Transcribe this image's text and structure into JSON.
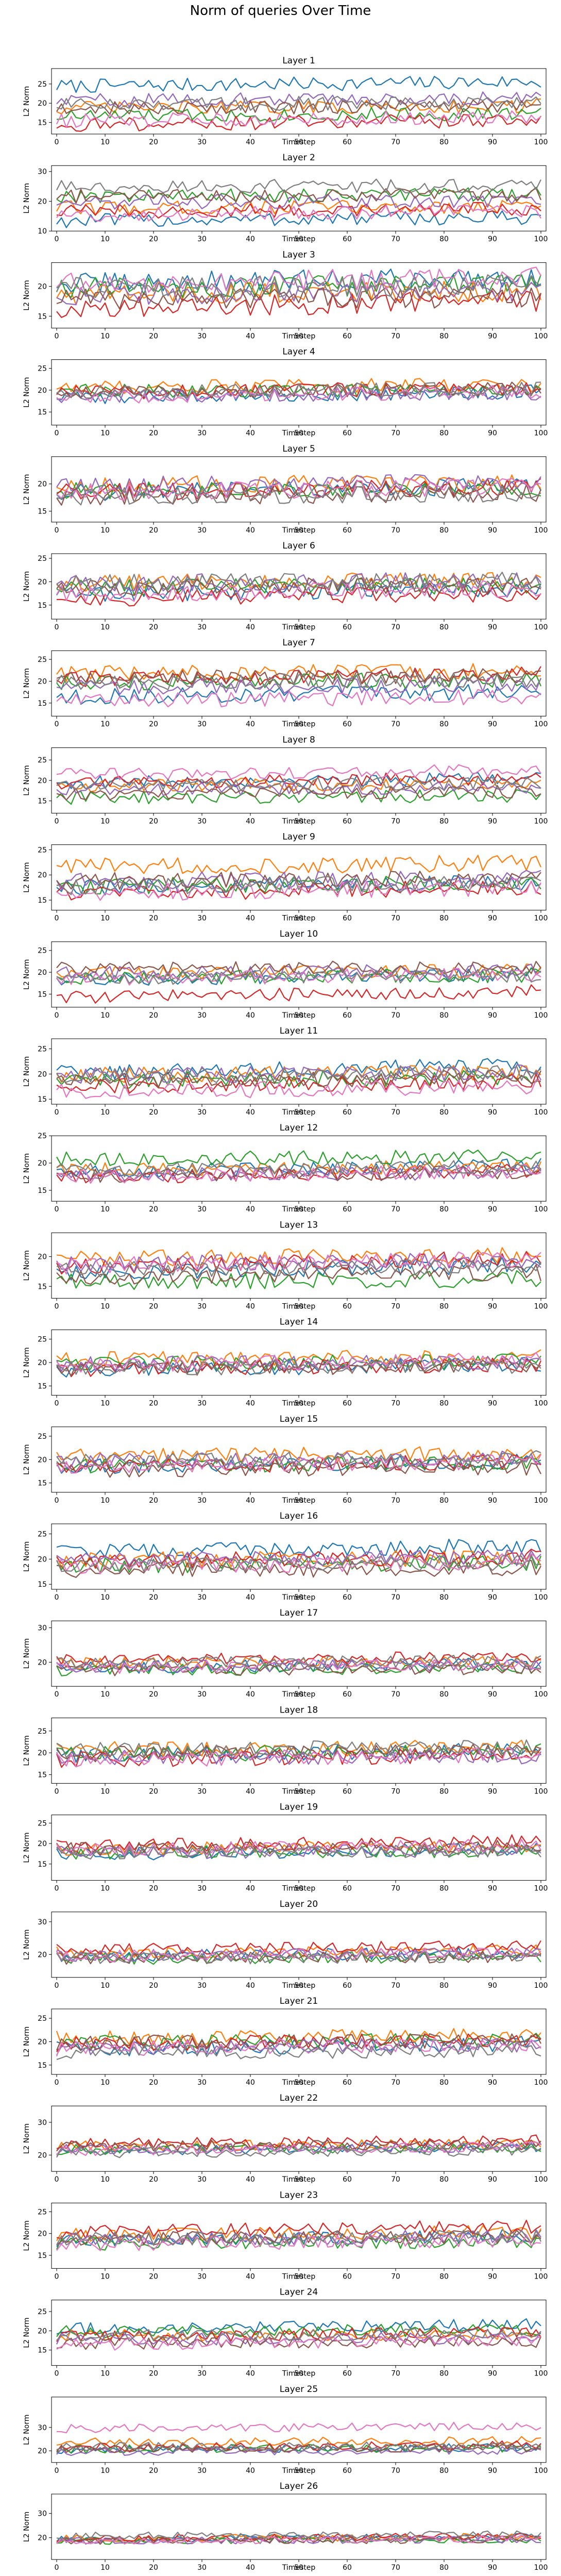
{
  "figure_title": "Norm of queries Over Time",
  "xlabel": "Timestep",
  "ylabel": "L2 Norm",
  "xticks": [
    0,
    10,
    20,
    30,
    40,
    50,
    60,
    70,
    80,
    90,
    100
  ],
  "colors": [
    "#1f77b4",
    "#ff7f0e",
    "#2ca02c",
    "#d62728",
    "#9467bd",
    "#8c564b",
    "#e377c2",
    "#7f7f7f"
  ],
  "layers": [
    {
      "title": "Layer 1",
      "ylim": [
        12,
        29
      ],
      "yticks": [
        15,
        20,
        25
      ],
      "levels": [
        25,
        19,
        17,
        15,
        21,
        19,
        16,
        20
      ],
      "amp": 1.8
    },
    {
      "title": "Layer 2",
      "ylim": [
        10,
        32
      ],
      "yticks": [
        10,
        20,
        30
      ],
      "levels": [
        14,
        18,
        22,
        17,
        20,
        22,
        16,
        25
      ],
      "amp": 2.4
    },
    {
      "title": "Layer 3",
      "ylim": [
        13,
        24
      ],
      "yticks": [
        15,
        20
      ],
      "levels": [
        21,
        19,
        20,
        17,
        19,
        18,
        21,
        20
      ],
      "amp": 1.8
    },
    {
      "title": "Layer 4",
      "ylim": [
        12,
        27
      ],
      "yticks": [
        15,
        20,
        25
      ],
      "levels": [
        19,
        21,
        20,
        20,
        19,
        20,
        19,
        20
      ],
      "amp": 1.6
    },
    {
      "title": "Layer 5",
      "ylim": [
        13,
        25
      ],
      "yticks": [
        15,
        20
      ],
      "levels": [
        19,
        20,
        19,
        19,
        20,
        18,
        19,
        18
      ],
      "amp": 1.6
    },
    {
      "title": "Layer 6",
      "ylim": [
        12,
        26
      ],
      "yticks": [
        15,
        20,
        25
      ],
      "levels": [
        18,
        20,
        19,
        17,
        20,
        19,
        18,
        20
      ],
      "amp": 1.8
    },
    {
      "title": "Layer 7",
      "ylim": [
        12,
        27
      ],
      "yticks": [
        15,
        20,
        25
      ],
      "levels": [
        17,
        22,
        20,
        21,
        19,
        21,
        16,
        20
      ],
      "amp": 1.8
    },
    {
      "title": "Layer 8",
      "ylim": [
        12,
        28
      ],
      "yticks": [
        15,
        20,
        25
      ],
      "levels": [
        20,
        19,
        16,
        20,
        18,
        17,
        22,
        19
      ],
      "amp": 1.6
    },
    {
      "title": "Layer 9",
      "ylim": [
        13,
        26
      ],
      "yticks": [
        15,
        20,
        25
      ],
      "levels": [
        18,
        22,
        18,
        17,
        19,
        19,
        17,
        18
      ],
      "amp": 1.7
    },
    {
      "title": "Layer 10",
      "ylim": [
        12,
        27
      ],
      "yticks": [
        15,
        20,
        25
      ],
      "levels": [
        19,
        20,
        19,
        15,
        20,
        21,
        19,
        19
      ],
      "amp": 1.6
    },
    {
      "title": "Layer 11",
      "ylim": [
        14,
        27
      ],
      "yticks": [
        15,
        20,
        25
      ],
      "levels": [
        21,
        20,
        19,
        18,
        20,
        19,
        17,
        20
      ],
      "amp": 1.6
    },
    {
      "title": "Layer 12",
      "ylim": [
        13,
        25
      ],
      "yticks": [
        15,
        20,
        25
      ],
      "levels": [
        19,
        19,
        21,
        18,
        18,
        18,
        18,
        19
      ],
      "amp": 1.3
    },
    {
      "title": "Layer 13",
      "ylim": [
        13,
        24
      ],
      "yticks": [
        15,
        20
      ],
      "levels": [
        18,
        20,
        16,
        19,
        19,
        17,
        19,
        18
      ],
      "amp": 1.4
    },
    {
      "title": "Layer 14",
      "ylim": [
        13,
        27
      ],
      "yticks": [
        15,
        20,
        25
      ],
      "levels": [
        19,
        21,
        20,
        19,
        20,
        19,
        20,
        19
      ],
      "amp": 1.6
    },
    {
      "title": "Layer 15",
      "ylim": [
        13,
        27
      ],
      "yticks": [
        15,
        20,
        25
      ],
      "levels": [
        19,
        21,
        19,
        19,
        20,
        18,
        19,
        20
      ],
      "amp": 1.6
    },
    {
      "title": "Layer 16",
      "ylim": [
        14,
        27
      ],
      "yticks": [
        15,
        20,
        25
      ],
      "levels": [
        22,
        20,
        19,
        20,
        20,
        18,
        19,
        19
      ],
      "amp": 1.6
    },
    {
      "title": "Layer 17",
      "ylim": [
        13,
        32
      ],
      "yticks": [
        20,
        30
      ],
      "levels": [
        19,
        20,
        18,
        21,
        19,
        18,
        19,
        20
      ],
      "amp": 1.8
    },
    {
      "title": "Layer 18",
      "ylim": [
        13,
        28
      ],
      "yticks": [
        15,
        20,
        25
      ],
      "levels": [
        20,
        21,
        20,
        19,
        19,
        20,
        19,
        21
      ],
      "amp": 1.8
    },
    {
      "title": "Layer 19",
      "ylim": [
        11,
        27
      ],
      "yticks": [
        15,
        20,
        25
      ],
      "levels": [
        18,
        19,
        18,
        20,
        18,
        19,
        19,
        18
      ],
      "amp": 1.6
    },
    {
      "title": "Layer 20",
      "ylim": [
        13,
        33
      ],
      "yticks": [
        20,
        30
      ],
      "levels": [
        20,
        21,
        19,
        22,
        20,
        19,
        20,
        19
      ],
      "amp": 1.8
    },
    {
      "title": "Layer 21",
      "ylim": [
        13,
        27
      ],
      "yticks": [
        15,
        20,
        25
      ],
      "levels": [
        19,
        21,
        20,
        20,
        19,
        20,
        19,
        18
      ],
      "amp": 1.6
    },
    {
      "title": "Layer 22",
      "ylim": [
        15,
        35
      ],
      "yticks": [
        20,
        30
      ],
      "levels": [
        22,
        23,
        22,
        24,
        22,
        23,
        22,
        21
      ],
      "amp": 1.6
    },
    {
      "title": "Layer 23",
      "ylim": [
        12,
        27
      ],
      "yticks": [
        15,
        20,
        25
      ],
      "levels": [
        19,
        20,
        18,
        21,
        19,
        19,
        18,
        19
      ],
      "amp": 1.6
    },
    {
      "title": "Layer 24",
      "ylim": [
        11,
        28
      ],
      "yticks": [
        15,
        20,
        25
      ],
      "levels": [
        21,
        19,
        20,
        19,
        18,
        17,
        17,
        19
      ],
      "amp": 1.6
    },
    {
      "title": "Layer 25",
      "ylim": [
        15,
        43
      ],
      "yticks": [
        20,
        30
      ],
      "levels": [
        21,
        24,
        21,
        22,
        20,
        21,
        30,
        22
      ],
      "amp": 1.8
    },
    {
      "title": "Layer 26",
      "ylim": [
        11,
        38
      ],
      "yticks": [
        20,
        30
      ],
      "levels": [
        20,
        20,
        19,
        20,
        19,
        19,
        19,
        21
      ],
      "amp": 1.5
    }
  ]
}
